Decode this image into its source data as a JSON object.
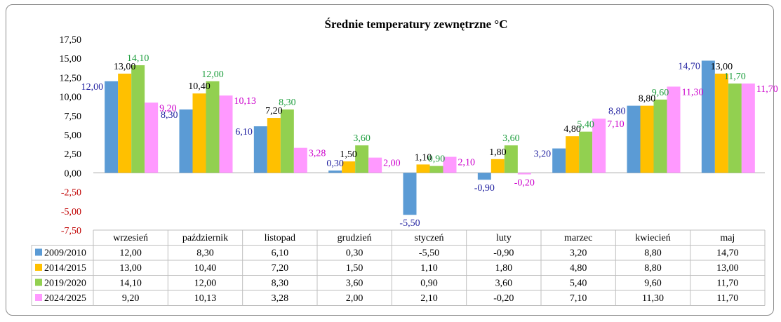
{
  "chart_data": {
    "type": "bar",
    "title": "Średnie temperatury zewnętrzne °C",
    "categories": [
      "wrzesień",
      "październik",
      "listopad",
      "grudzień",
      "styczeń",
      "luty",
      "marzec",
      "kwiecień",
      "maj"
    ],
    "series": [
      {
        "name": "2009/2010",
        "color": "#5b9bd5",
        "label_color": "#1f1f9f",
        "values": [
          12.0,
          8.3,
          6.1,
          0.3,
          -5.5,
          -0.9,
          3.2,
          8.8,
          14.7
        ],
        "labels": [
          "12,00",
          "8,30",
          "6,10",
          "0,30",
          "-5,50",
          "-0,90",
          "3,20",
          "8,80",
          "14,70"
        ]
      },
      {
        "name": "2014/2015",
        "color": "#ffc000",
        "label_color": "#000000",
        "values": [
          13.0,
          10.4,
          7.2,
          1.5,
          1.1,
          1.8,
          4.8,
          8.8,
          13.0
        ],
        "labels": [
          "13,00",
          "10,40",
          "7,20",
          "1,50",
          "1,10",
          "1,80",
          "4,80",
          "8,80",
          "13,00"
        ]
      },
      {
        "name": "2019/2020",
        "color": "#92d050",
        "label_color": "#1e9e3e",
        "values": [
          14.1,
          12.0,
          8.3,
          3.6,
          0.9,
          3.6,
          5.4,
          9.6,
          11.7
        ],
        "labels": [
          "14,10",
          "12,00",
          "8,30",
          "3,60",
          "0,90",
          "3,60",
          "5,40",
          "9,60",
          "11,70"
        ]
      },
      {
        "name": "2024/2025",
        "color": "#ff99ff",
        "label_color": "#cc00cc",
        "values": [
          9.2,
          10.13,
          3.28,
          2.0,
          2.1,
          -0.2,
          7.1,
          11.3,
          11.7
        ],
        "labels": [
          "9,20",
          "10,13",
          "3,28",
          "2,00",
          "2,10",
          "-0,20",
          "7,10",
          "11,30",
          "11,70"
        ]
      }
    ],
    "yticks": [
      17.5,
      15,
      12.5,
      10,
      7.5,
      5,
      2.5,
      0,
      -2.5,
      -5,
      -7.5
    ],
    "ytick_labels": [
      "17,50",
      "15,00",
      "12,50",
      "10,00",
      "7,50",
      "5,00",
      "2,50",
      "0,00",
      "-2,50",
      "-5,00",
      "-7,50"
    ],
    "ylim": [
      -7.5,
      17.5
    ],
    "legend": "data-table",
    "grid": false
  }
}
